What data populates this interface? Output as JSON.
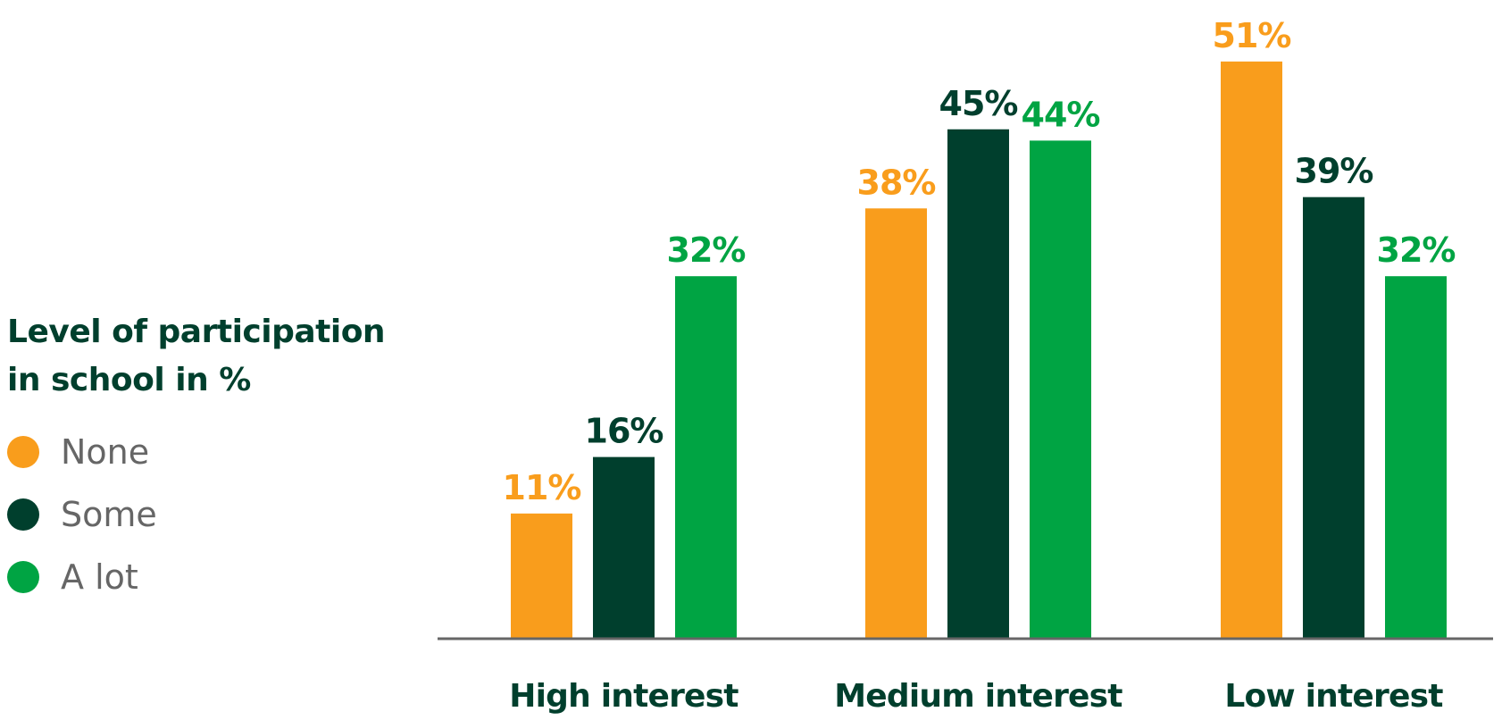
{
  "chart_data": {
    "type": "bar",
    "categories": [
      "High interest",
      "Medium interest",
      "Low interest"
    ],
    "series": [
      {
        "name": "None",
        "color": "#f99d1c",
        "values": [
          11,
          38,
          51
        ],
        "labels": [
          "11%",
          "38%",
          "51%"
        ]
      },
      {
        "name": "Some",
        "color": "#003f2d",
        "values": [
          16,
          45,
          39
        ],
        "labels": [
          "16%",
          "45%",
          "39%"
        ]
      },
      {
        "name": "A lot",
        "color": "#00a443",
        "values": [
          32,
          44,
          32
        ],
        "labels": [
          "32%",
          "44%",
          "32%"
        ]
      }
    ],
    "legend_title": "Level of participation in school in %",
    "legend_position": "left",
    "title": "",
    "xlabel": "",
    "ylabel": "",
    "grid": false
  }
}
